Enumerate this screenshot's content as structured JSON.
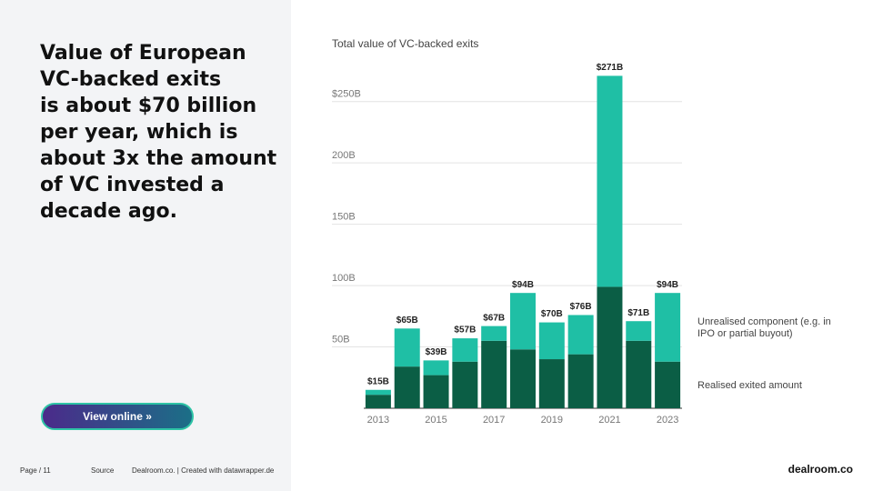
{
  "headline": [
    "Value of European",
    "VC-backed exits",
    "is about $70 billion",
    "per year, which is",
    "about 3x the amount",
    "of VC invested a",
    "decade ago."
  ],
  "button": "View online »",
  "footer": {
    "page": "Page / 11",
    "source": "Source",
    "credit": "Dealroom.co. | Created with datawrapper.de",
    "brand": "dealroom.co"
  },
  "chart_data": {
    "type": "stacked_bar",
    "title": "Total value of VC-backed exits",
    "categories": [
      "2013",
      null,
      "2015",
      null,
      "2017",
      null,
      "2019",
      null,
      "2021",
      null,
      "2023"
    ],
    "series": [
      {
        "name": "Realised exited amount",
        "color": "#0b5e45",
        "values": [
          11,
          34,
          27,
          38,
          55,
          48,
          40,
          44,
          99,
          55,
          38
        ]
      },
      {
        "name": "Unrealised component (e.g. in IPO or partial buyout)",
        "color": "#1fbfa5",
        "values": [
          4,
          31,
          12,
          19,
          12,
          46,
          30,
          32,
          172,
          16,
          56
        ]
      }
    ],
    "totals": {
      "values": [
        15,
        65,
        39,
        57,
        67,
        94,
        70,
        76,
        271,
        71,
        94
      ],
      "value_labels": [
        "$15B",
        "$65B",
        "$39B",
        "$57B",
        "$67B",
        "$94B",
        "$70B",
        "$76B",
        "$271B",
        "$71B",
        "$94B"
      ]
    },
    "ylim": [
      0,
      275
    ],
    "yticks": [
      {
        "value": 50,
        "label": "50B"
      },
      {
        "value": 100,
        "label": "100B"
      },
      {
        "value": 150,
        "label": "150B"
      },
      {
        "value": 200,
        "label": "200B"
      },
      {
        "value": 250,
        "label": "$250B"
      }
    ],
    "grid": true
  }
}
